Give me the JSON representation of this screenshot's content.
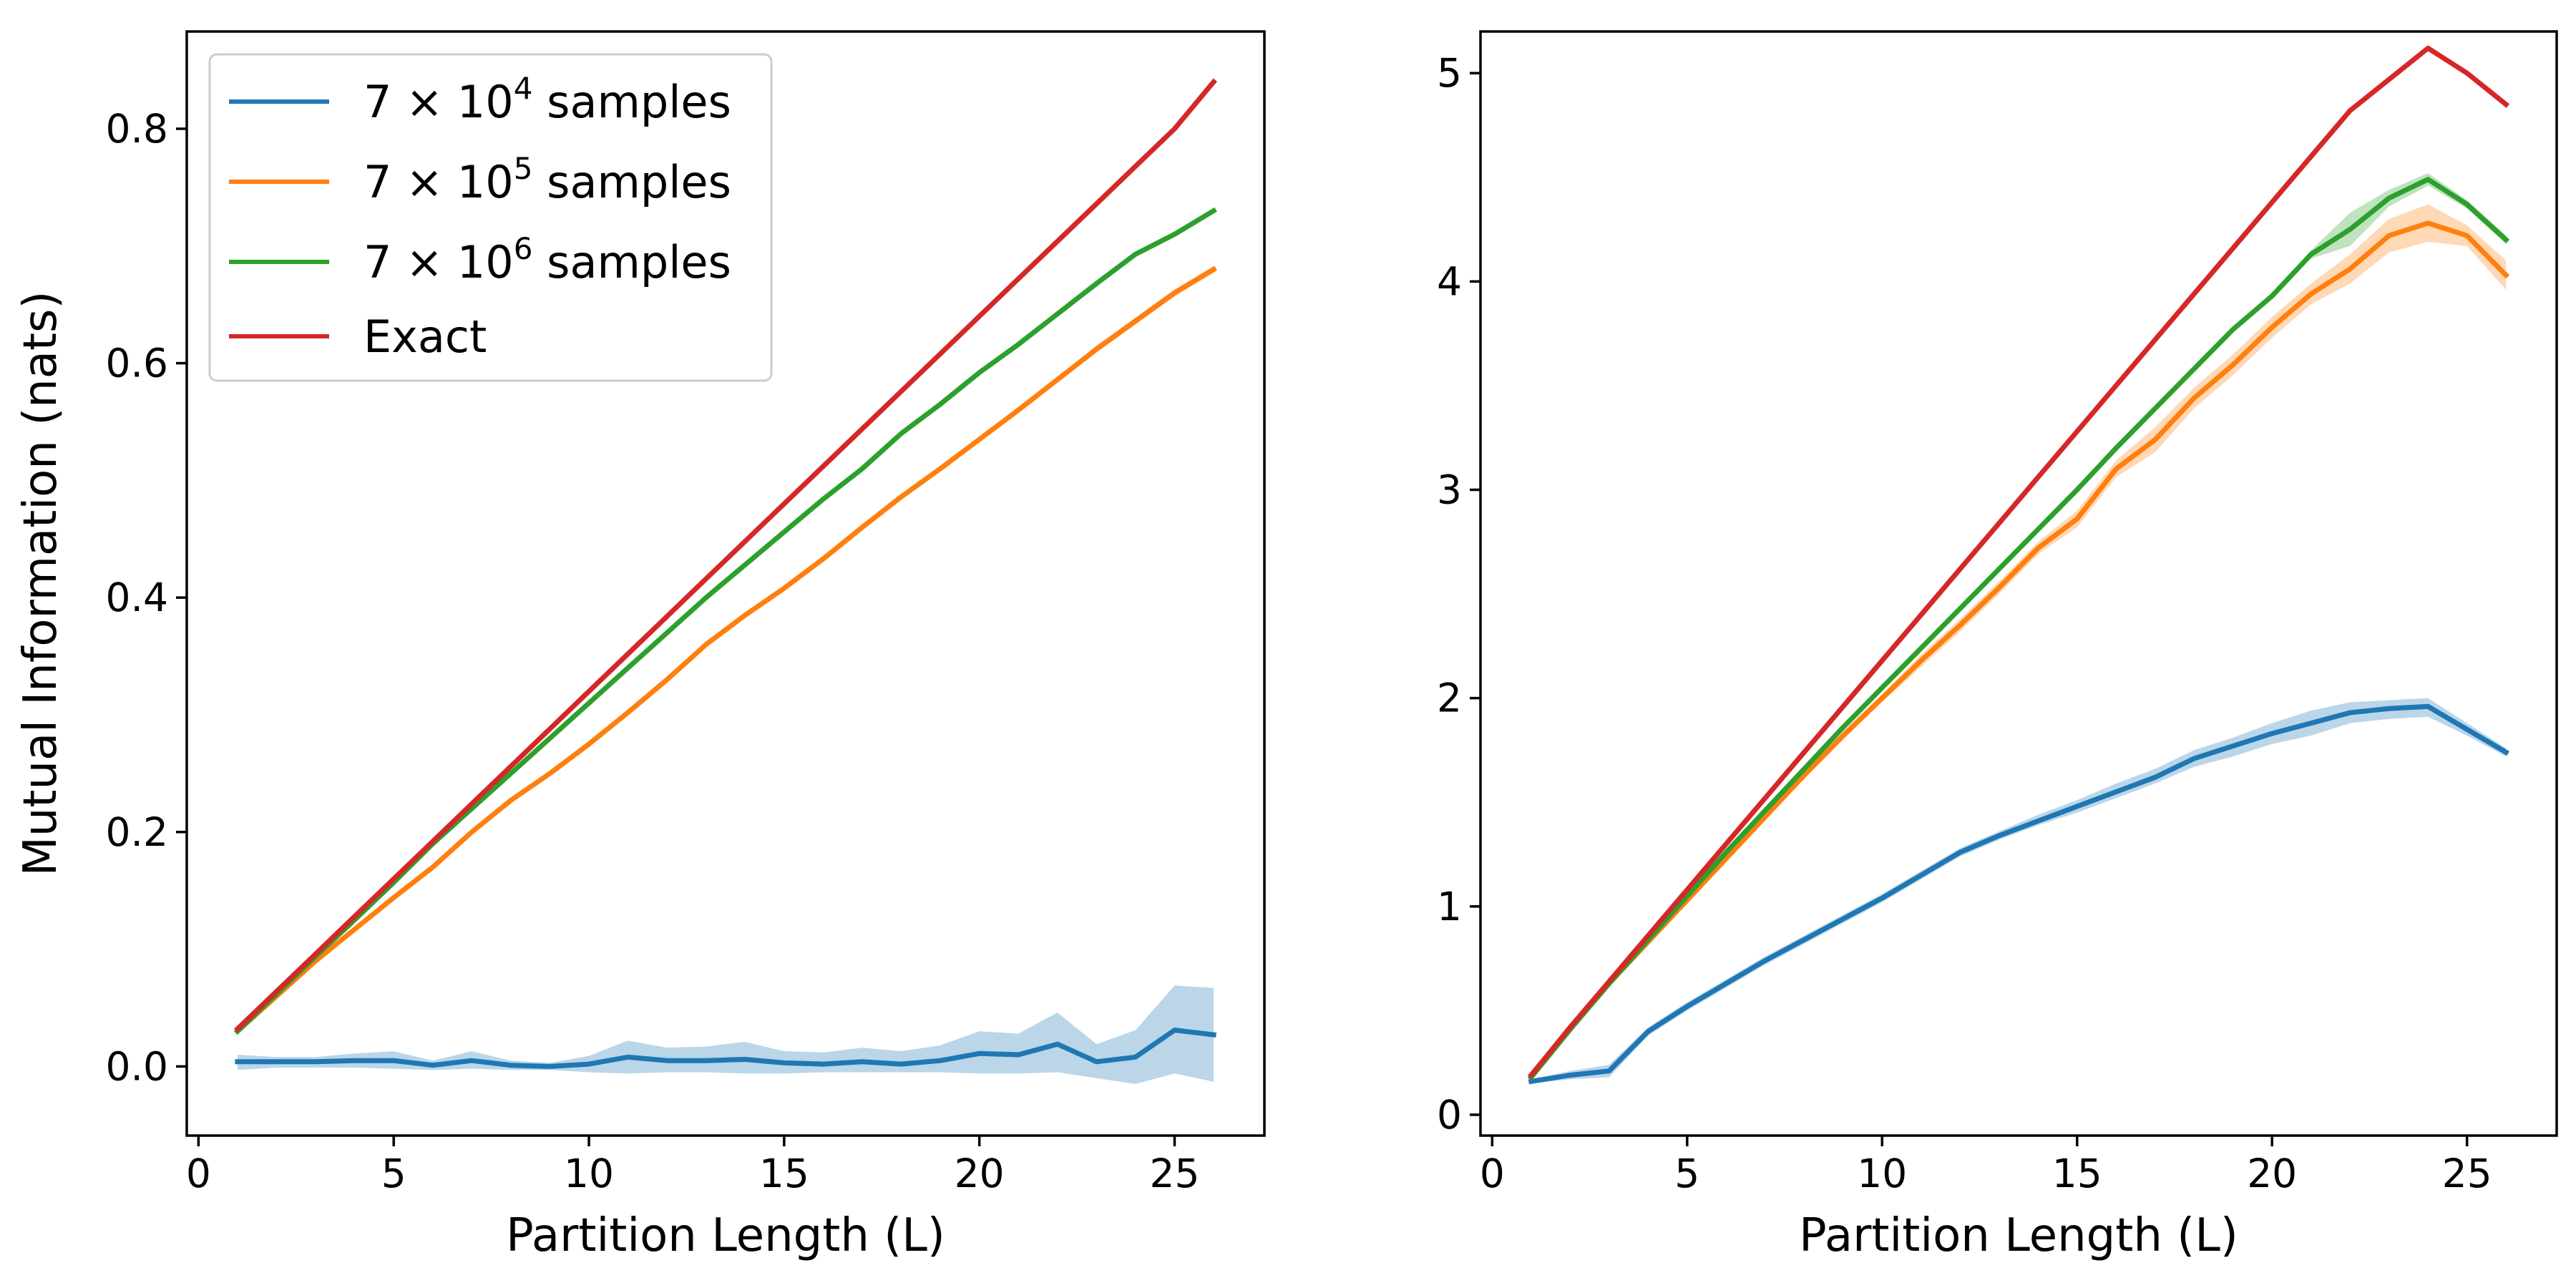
{
  "chart_data": [
    {
      "type": "line",
      "panel": "left",
      "xlabel": "Partition Length (L)",
      "ylabel": "Mutual Information (nats)",
      "xlim": [
        -0.3,
        27.3
      ],
      "ylim": [
        -0.059,
        0.883
      ],
      "xticks": [
        0,
        5,
        10,
        15,
        20,
        25
      ],
      "yticks": [
        0.0,
        0.2,
        0.4,
        0.6,
        0.8
      ],
      "ytick_labels": [
        "0.0",
        "0.2",
        "0.4",
        "0.6",
        "0.8"
      ],
      "grid": false,
      "legend": {
        "position": "top-left",
        "entries": [
          {
            "base": "7 × 10",
            "exp": "4",
            "suffix": " samples",
            "color": "#1f77b4"
          },
          {
            "base": "7 × 10",
            "exp": "5",
            "suffix": " samples",
            "color": "#ff7f0e"
          },
          {
            "base": "7 × 10",
            "exp": "6",
            "suffix": " samples",
            "color": "#2ca02c"
          },
          {
            "text": "Exact",
            "color": "#d62728"
          }
        ]
      },
      "x": [
        1,
        2,
        3,
        4,
        5,
        6,
        7,
        8,
        9,
        10,
        11,
        12,
        13,
        14,
        15,
        16,
        17,
        18,
        19,
        20,
        21,
        22,
        23,
        24,
        25,
        26
      ],
      "series": [
        {
          "color": "#1f77b4",
          "values": [
            0.004,
            0.004,
            0.004,
            0.005,
            0.005,
            0.001,
            0.005,
            0.001,
            0.0,
            0.002,
            0.008,
            0.005,
            0.005,
            0.006,
            0.003,
            0.002,
            0.004,
            0.002,
            0.005,
            0.011,
            0.01,
            0.019,
            0.004,
            0.008,
            0.031,
            0.027
          ],
          "band_lower": [
            -0.003,
            -0.001,
            -0.001,
            -0.001,
            -0.002,
            -0.003,
            -0.002,
            -0.003,
            -0.003,
            -0.005,
            -0.006,
            -0.005,
            -0.005,
            -0.006,
            -0.006,
            -0.005,
            -0.005,
            -0.005,
            -0.005,
            -0.006,
            -0.006,
            -0.005,
            -0.01,
            -0.015,
            -0.006,
            -0.013
          ],
          "band_upper": [
            0.01,
            0.008,
            0.008,
            0.011,
            0.013,
            0.005,
            0.013,
            0.005,
            0.003,
            0.009,
            0.022,
            0.016,
            0.017,
            0.021,
            0.013,
            0.012,
            0.016,
            0.013,
            0.018,
            0.03,
            0.028,
            0.046,
            0.019,
            0.031,
            0.069,
            0.067
          ]
        },
        {
          "color": "#ff7f0e",
          "values": [
            0.03,
            0.06,
            0.09,
            0.117,
            0.144,
            0.17,
            0.2,
            0.227,
            0.25,
            0.275,
            0.302,
            0.33,
            0.36,
            0.385,
            0.408,
            0.433,
            0.46,
            0.486,
            0.51,
            0.535,
            0.56,
            0.586,
            0.612,
            0.636,
            0.66,
            0.68
          ],
          "band_lower": [
            0.028,
            0.058,
            0.088,
            0.115,
            0.142,
            0.168,
            0.198,
            0.225,
            0.248,
            0.273,
            0.3,
            0.328,
            0.358,
            0.383,
            0.406,
            0.431,
            0.458,
            0.484,
            0.508,
            0.533,
            0.558,
            0.584,
            0.609,
            0.633,
            0.657,
            0.677
          ],
          "band_upper": [
            0.032,
            0.062,
            0.092,
            0.119,
            0.146,
            0.172,
            0.202,
            0.229,
            0.252,
            0.277,
            0.304,
            0.332,
            0.362,
            0.387,
            0.41,
            0.435,
            0.462,
            0.488,
            0.512,
            0.537,
            0.562,
            0.588,
            0.615,
            0.639,
            0.663,
            0.683
          ]
        },
        {
          "color": "#2ca02c",
          "values": [
            0.03,
            0.062,
            0.094,
            0.125,
            0.157,
            0.19,
            0.22,
            0.25,
            0.28,
            0.31,
            0.34,
            0.37,
            0.4,
            0.428,
            0.456,
            0.484,
            0.51,
            0.54,
            0.565,
            0.592,
            0.616,
            0.642,
            0.668,
            0.693,
            0.71,
            0.73
          ],
          "band_lower": [
            0.029,
            0.061,
            0.093,
            0.124,
            0.156,
            0.189,
            0.219,
            0.249,
            0.279,
            0.309,
            0.339,
            0.369,
            0.399,
            0.427,
            0.455,
            0.483,
            0.509,
            0.539,
            0.564,
            0.591,
            0.615,
            0.641,
            0.667,
            0.692,
            0.709,
            0.729
          ],
          "band_upper": [
            0.031,
            0.063,
            0.095,
            0.126,
            0.158,
            0.191,
            0.221,
            0.251,
            0.281,
            0.311,
            0.341,
            0.371,
            0.401,
            0.429,
            0.457,
            0.485,
            0.511,
            0.541,
            0.566,
            0.593,
            0.617,
            0.643,
            0.669,
            0.694,
            0.711,
            0.731
          ]
        },
        {
          "color": "#d62728",
          "values": [
            0.032,
            0.064,
            0.096,
            0.128,
            0.16,
            0.192,
            0.224,
            0.256,
            0.288,
            0.32,
            0.352,
            0.384,
            0.416,
            0.448,
            0.48,
            0.512,
            0.544,
            0.576,
            0.608,
            0.64,
            0.672,
            0.704,
            0.736,
            0.768,
            0.8,
            0.84
          ]
        }
      ]
    },
    {
      "type": "line",
      "panel": "right",
      "xlabel": "Partition Length (L)",
      "ylabel": "",
      "xlim": [
        -0.3,
        27.3
      ],
      "ylim": [
        -0.1,
        5.2
      ],
      "xticks": [
        0,
        5,
        10,
        15,
        20,
        25
      ],
      "yticks": [
        0,
        1,
        2,
        3,
        4,
        5
      ],
      "ytick_labels": [
        "0",
        "1",
        "2",
        "3",
        "4",
        "5"
      ],
      "grid": false,
      "x": [
        1,
        2,
        3,
        4,
        5,
        6,
        7,
        8,
        9,
        10,
        11,
        12,
        13,
        14,
        15,
        16,
        17,
        18,
        19,
        20,
        21,
        22,
        23,
        24,
        25,
        26
      ],
      "series": [
        {
          "color": "#1f77b4",
          "values": [
            0.16,
            0.19,
            0.21,
            0.4,
            0.52,
            0.63,
            0.74,
            0.84,
            0.94,
            1.04,
            1.15,
            1.26,
            1.34,
            1.41,
            1.48,
            1.55,
            1.62,
            1.71,
            1.77,
            1.83,
            1.88,
            1.93,
            1.95,
            1.96,
            1.85,
            1.74
          ],
          "band_lower": [
            0.15,
            0.17,
            0.18,
            0.38,
            0.5,
            0.61,
            0.72,
            0.82,
            0.92,
            1.02,
            1.13,
            1.24,
            1.32,
            1.39,
            1.45,
            1.52,
            1.59,
            1.67,
            1.72,
            1.78,
            1.82,
            1.88,
            1.9,
            1.91,
            1.82,
            1.72
          ],
          "band_upper": [
            0.17,
            0.21,
            0.24,
            0.42,
            0.54,
            0.65,
            0.76,
            0.86,
            0.96,
            1.06,
            1.17,
            1.28,
            1.36,
            1.44,
            1.51,
            1.59,
            1.66,
            1.75,
            1.81,
            1.88,
            1.94,
            1.98,
            1.99,
            2.0,
            1.88,
            1.76
          ]
        },
        {
          "color": "#ff7f0e",
          "values": [
            0.18,
            0.41,
            0.63,
            0.83,
            1.03,
            1.23,
            1.43,
            1.63,
            1.82,
            2.0,
            2.18,
            2.35,
            2.53,
            2.72,
            2.86,
            3.1,
            3.24,
            3.44,
            3.6,
            3.78,
            3.94,
            4.06,
            4.22,
            4.28,
            4.22,
            4.03
          ],
          "band_lower": [
            0.17,
            0.4,
            0.62,
            0.82,
            1.02,
            1.22,
            1.42,
            1.61,
            1.8,
            1.98,
            2.15,
            2.32,
            2.5,
            2.69,
            2.82,
            3.06,
            3.18,
            3.39,
            3.55,
            3.73,
            3.89,
            3.99,
            4.14,
            4.19,
            4.17,
            3.96
          ],
          "band_upper": [
            0.19,
            0.42,
            0.64,
            0.84,
            1.04,
            1.24,
            1.44,
            1.65,
            1.84,
            2.02,
            2.21,
            2.38,
            2.56,
            2.75,
            2.9,
            3.14,
            3.3,
            3.49,
            3.65,
            3.83,
            3.99,
            4.13,
            4.3,
            4.37,
            4.27,
            4.1
          ]
        },
        {
          "color": "#2ca02c",
          "values": [
            0.18,
            0.41,
            0.63,
            0.84,
            1.05,
            1.26,
            1.46,
            1.66,
            1.86,
            2.05,
            2.24,
            2.43,
            2.62,
            2.81,
            3.0,
            3.2,
            3.39,
            3.58,
            3.77,
            3.93,
            4.13,
            4.25,
            4.4,
            4.49,
            4.37,
            4.2
          ],
          "band_lower": [
            0.17,
            0.4,
            0.62,
            0.83,
            1.04,
            1.25,
            1.45,
            1.65,
            1.85,
            2.04,
            2.23,
            2.42,
            2.61,
            2.8,
            2.99,
            3.19,
            3.38,
            3.57,
            3.76,
            3.92,
            4.11,
            4.17,
            4.36,
            4.46,
            4.35,
            4.18
          ],
          "band_upper": [
            0.19,
            0.42,
            0.64,
            0.85,
            1.06,
            1.27,
            1.47,
            1.67,
            1.87,
            2.06,
            2.25,
            2.44,
            2.63,
            2.82,
            3.01,
            3.21,
            3.4,
            3.59,
            3.78,
            3.94,
            4.15,
            4.33,
            4.44,
            4.52,
            4.39,
            4.22
          ]
        },
        {
          "color": "#d62728",
          "values": [
            0.19,
            0.42,
            0.64,
            0.86,
            1.08,
            1.3,
            1.52,
            1.74,
            1.96,
            2.18,
            2.4,
            2.62,
            2.84,
            3.06,
            3.28,
            3.5,
            3.72,
            3.94,
            4.16,
            4.38,
            4.6,
            4.82,
            4.97,
            5.12,
            5.0,
            4.85
          ]
        }
      ]
    }
  ]
}
